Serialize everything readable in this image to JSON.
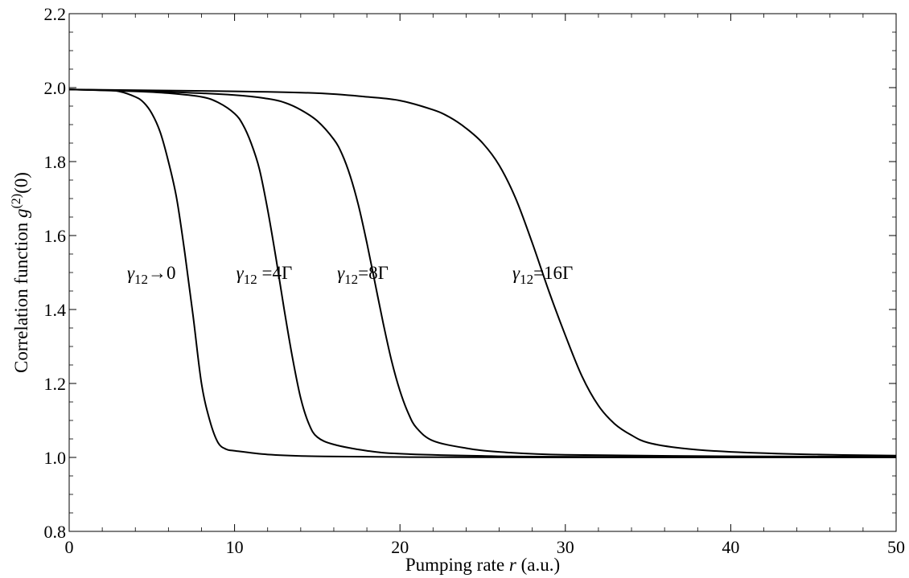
{
  "chart_data": {
    "type": "line",
    "title": "",
    "xlabel": "Pumping rate r (a.u.)",
    "ylabel": "Correlation function g(2)(0)",
    "xlabel_parts": {
      "before": "Pumping rate ",
      "italic": "r",
      "after": " (a.u.)"
    },
    "ylabel_parts": {
      "before": "Correlation function ",
      "italic": "g",
      "sup": "(2)",
      "after": "(0)"
    },
    "xlim": [
      0,
      50
    ],
    "ylim": [
      0.8,
      2.2
    ],
    "xticks": [
      0,
      10,
      20,
      30,
      40,
      50
    ],
    "yticks": [
      0.8,
      1.0,
      1.2,
      1.4,
      1.6,
      1.8,
      2.0,
      2.2
    ],
    "grid": false,
    "legend": "none",
    "line_color": "#000000",
    "series": [
      {
        "label_text": "γ12→0",
        "label_parts": {
          "greek": "γ",
          "sub": "12",
          "rest": "→0"
        },
        "label_at": {
          "x": 3.5,
          "y": 1.5
        },
        "x": [
          0,
          2,
          3,
          4,
          4.5,
          5,
          5.5,
          6,
          6.5,
          7,
          7.5,
          8,
          8.5,
          9,
          9.5,
          10,
          12,
          15,
          20,
          30,
          50
        ],
        "y": [
          1.995,
          1.993,
          1.99,
          1.975,
          1.96,
          1.93,
          1.88,
          1.8,
          1.7,
          1.55,
          1.38,
          1.2,
          1.1,
          1.04,
          1.022,
          1.018,
          1.008,
          1.003,
          1.001,
          1.0,
          1.0
        ]
      },
      {
        "label_text": "γ12 =4Γ",
        "label_parts": {
          "greek": "γ",
          "sub": "12",
          "rest": " =4Γ"
        },
        "label_at": {
          "x": 10.1,
          "y": 1.5
        },
        "x": [
          0,
          4,
          6,
          8,
          9,
          10,
          10.5,
          11,
          11.5,
          12,
          12.5,
          13,
          13.5,
          14,
          14.5,
          15,
          16,
          18,
          20,
          25,
          30,
          50
        ],
        "y": [
          1.995,
          1.99,
          1.985,
          1.975,
          1.96,
          1.93,
          1.9,
          1.85,
          1.78,
          1.67,
          1.54,
          1.4,
          1.27,
          1.16,
          1.09,
          1.055,
          1.035,
          1.018,
          1.01,
          1.004,
          1.002,
          1.0
        ]
      },
      {
        "label_text": "γ12=8Γ",
        "label_parts": {
          "greek": "γ",
          "sub": "12",
          "rest": "=8Γ"
        },
        "label_at": {
          "x": 16.2,
          "y": 1.5
        },
        "x": [
          0,
          5,
          10,
          12,
          13,
          14,
          15,
          16,
          16.5,
          17,
          17.5,
          18,
          18.5,
          19,
          19.5,
          20,
          20.5,
          21,
          22,
          24,
          26,
          30,
          40,
          50
        ],
        "y": [
          1.995,
          1.99,
          1.98,
          1.97,
          1.96,
          1.94,
          1.91,
          1.86,
          1.82,
          1.76,
          1.68,
          1.58,
          1.47,
          1.36,
          1.26,
          1.18,
          1.12,
          1.08,
          1.045,
          1.025,
          1.015,
          1.007,
          1.003,
          1.002
        ]
      },
      {
        "label_text": "γ12=16Γ",
        "label_parts": {
          "greek": "γ",
          "sub": "12",
          "rest": "=16Γ"
        },
        "label_at": {
          "x": 26.8,
          "y": 1.5
        },
        "x": [
          0,
          10,
          15,
          18,
          20,
          22,
          23,
          24,
          25,
          26,
          27,
          28,
          29,
          30,
          31,
          32,
          33,
          34,
          35,
          37,
          40,
          45,
          50
        ],
        "y": [
          1.995,
          1.99,
          1.985,
          1.975,
          1.965,
          1.94,
          1.92,
          1.89,
          1.85,
          1.79,
          1.7,
          1.58,
          1.45,
          1.33,
          1.22,
          1.14,
          1.09,
          1.06,
          1.04,
          1.025,
          1.015,
          1.008,
          1.005
        ]
      }
    ]
  }
}
